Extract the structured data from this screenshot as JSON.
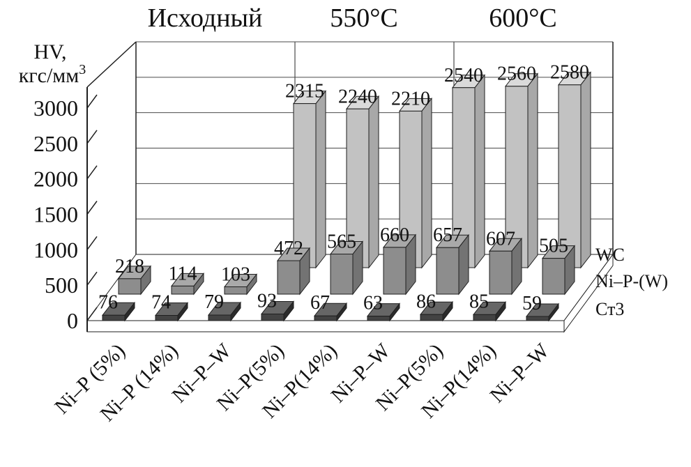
{
  "background": "#ffffff",
  "chart_data": {
    "type": "bar",
    "projection": "3d",
    "groups": [
      {
        "label": "Исходный",
        "from": 0,
        "to": 2
      },
      {
        "label": "550°C",
        "from": 3,
        "to": 5
      },
      {
        "label": "600°C",
        "from": 6,
        "to": 8
      }
    ],
    "categories": [
      "Ni–P (5%)",
      "Ni–P (14%)",
      "Ni–P–W",
      "Ni–P(5%)",
      "Ni–P(14%)",
      "Ni–P–W",
      "Ni–P(5%)",
      "Ni–P(14%)",
      "Ni–P–W"
    ],
    "series": [
      {
        "name": "Ст3",
        "values": [
          76,
          74,
          79,
          93,
          67,
          63,
          86,
          85,
          59
        ],
        "colors": {
          "front": "#434343",
          "top": "#666666",
          "side": "#2b2b2b"
        }
      },
      {
        "name": "Ni–P-(W)",
        "values": [
          218,
          114,
          103,
          472,
          565,
          660,
          657,
          607,
          505
        ],
        "colors": {
          "front": "#8d8d8d",
          "top": "#a9a9a9",
          "side": "#737373"
        }
      },
      {
        "name": "WC",
        "values": [
          null,
          null,
          null,
          2315,
          2240,
          2210,
          2540,
          2560,
          2580
        ],
        "colors": {
          "front": "#c2c2c2",
          "top": "#dadada",
          "side": "#a8a8a8"
        }
      }
    ],
    "y_axis": {
      "title": "HV,",
      "unit_base": "кгс/мм",
      "unit_sup": "3",
      "ticks": [
        0,
        500,
        1000,
        1500,
        2000,
        2500,
        3000
      ],
      "ylim": [
        0,
        3000
      ],
      "grid": true
    },
    "legend_position": "right",
    "value_labels_shown": true
  },
  "styles": {
    "grid_color": "#4a4a4a",
    "axis_color": "#1f1f1f",
    "text_color": "#111111",
    "bar_outline": "#1f1f1f",
    "wall_fill": "#ffffff"
  }
}
